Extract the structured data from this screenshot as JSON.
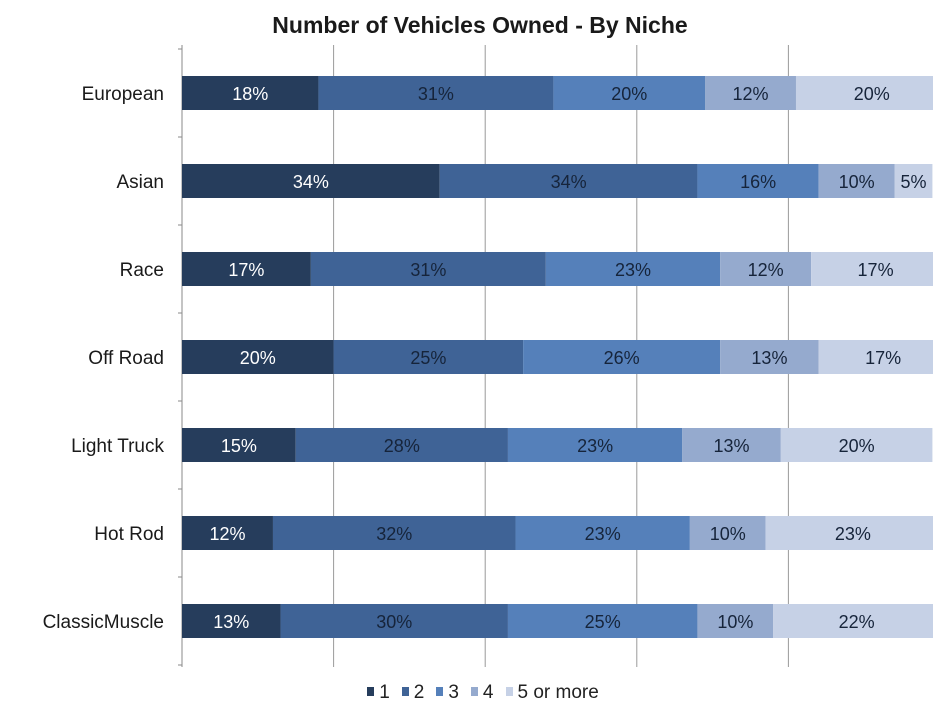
{
  "chart_data": {
    "type": "bar",
    "orientation": "horizontal",
    "stacked": true,
    "title": "Number of Vehicles Owned - By Niche",
    "categories": [
      "European",
      "Asian",
      "Race",
      "Off Road",
      "Light Truck",
      "Hot Rod",
      "ClassicMuscle"
    ],
    "series": [
      {
        "name": "1",
        "color": "#263d5c",
        "values": [
          18,
          34,
          17,
          20,
          15,
          12,
          13
        ]
      },
      {
        "name": "2",
        "color": "#3f6396",
        "values": [
          31,
          34,
          31,
          25,
          28,
          32,
          30
        ]
      },
      {
        "name": "3",
        "color": "#5580ba",
        "values": [
          20,
          16,
          23,
          26,
          23,
          23,
          25
        ]
      },
      {
        "name": "4",
        "color": "#95aace",
        "values": [
          12,
          10,
          12,
          13,
          13,
          10,
          10
        ]
      },
      {
        "name": "5 or more",
        "color": "#c6d1e6",
        "values": [
          20,
          5,
          17,
          17,
          20,
          23,
          22
        ]
      }
    ],
    "data_labels": [
      [
        "18%",
        "31%",
        "20%",
        "12%",
        "20%"
      ],
      [
        "34%",
        "34%",
        "16%",
        "10%",
        "5%"
      ],
      [
        "17%",
        "31%",
        "23%",
        "12%",
        "17%"
      ],
      [
        "20%",
        "25%",
        "26%",
        "13%",
        "17%"
      ],
      [
        "15%",
        "28%",
        "23%",
        "13%",
        "20%"
      ],
      [
        "12%",
        "32%",
        "23%",
        "10%",
        "23%"
      ],
      [
        "13%",
        "30%",
        "25%",
        "10%",
        "22%"
      ]
    ],
    "xlim": [
      0,
      100
    ],
    "grid": true,
    "legend_position": "bottom"
  }
}
